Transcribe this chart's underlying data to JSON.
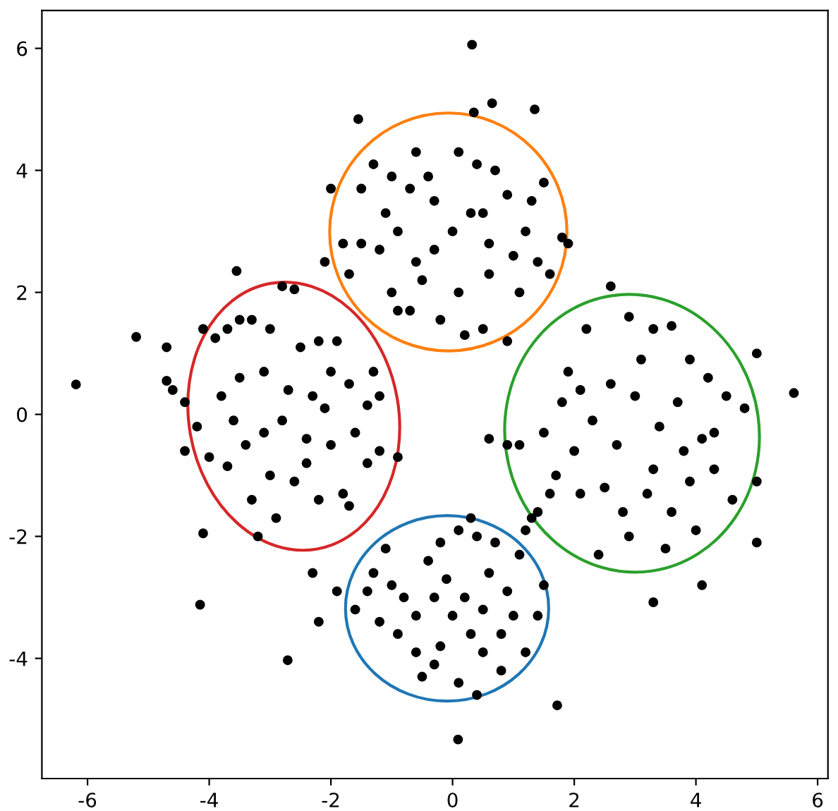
{
  "chart_data": {
    "type": "scatter",
    "xlim": [
      -6.75,
      6.17
    ],
    "ylim": [
      -5.97,
      6.62
    ],
    "xticks": [
      -6,
      -4,
      -2,
      0,
      2,
      4,
      6
    ],
    "yticks": [
      -4,
      -2,
      0,
      2,
      4,
      6
    ],
    "grid": false,
    "series": [
      {
        "color": "#000000",
        "marker": "circle",
        "x": [
          0.32,
          -6.19,
          -5.2,
          5.61,
          0.09,
          1.72,
          -4.15,
          -2.71,
          0.35,
          0.65,
          1.35,
          -1.55,
          -3.55,
          5.0,
          3.3,
          4.1,
          5.0,
          -4.7,
          -4.7,
          -4.6,
          -4.4,
          -4.1,
          -3.9,
          -3.7,
          -3.5,
          -3.3,
          -3.0,
          -2.6,
          -2.8,
          -2.2,
          -2.5,
          -1.9,
          -1.3,
          -1.2,
          -1.4,
          -1.7,
          -2.0,
          -2.3,
          -2.7,
          -3.1,
          -3.5,
          -3.8,
          -4.2,
          -4.4,
          -4.0,
          -3.7,
          -3.4,
          -3.1,
          -2.8,
          -2.4,
          -2.0,
          -1.6,
          -1.4,
          -1.8,
          -2.2,
          -2.6,
          -3.0,
          -3.3,
          -2.9,
          -3.2,
          -1.7,
          -4.1,
          -2.4,
          -3.6,
          -2.1,
          -1.2,
          -0.9,
          -1.5,
          -1.3,
          -1.0,
          -0.7,
          -0.4,
          0.1,
          0.4,
          0.7,
          0.9,
          1.3,
          1.5,
          1.8,
          1.6,
          1.1,
          1.0,
          0.6,
          0.3,
          0.0,
          -0.3,
          -0.6,
          -0.9,
          -1.2,
          -1.5,
          -1.8,
          -2.1,
          -1.7,
          -1.0,
          -0.7,
          -0.2,
          0.2,
          0.5,
          0.9,
          -0.3,
          0.5,
          -1.1,
          1.2,
          0.1,
          -0.5,
          1.9,
          -2.0,
          -0.6,
          0.6,
          -0.9,
          1.4,
          1.5,
          1.8,
          1.9,
          2.2,
          2.6,
          2.9,
          3.3,
          3.6,
          3.9,
          4.2,
          4.5,
          4.8,
          4.3,
          3.8,
          3.4,
          3.0,
          2.6,
          2.3,
          2.0,
          1.7,
          1.1,
          1.4,
          2.1,
          2.5,
          2.8,
          3.2,
          3.6,
          3.9,
          4.3,
          4.6,
          3.5,
          2.9,
          2.4,
          4.0,
          1.2,
          2.1,
          3.1,
          3.7,
          2.7,
          4.1,
          3.3,
          1.6,
          0.9,
          0.6,
          5.0,
          1.3,
          -1.3,
          -1.0,
          -0.8,
          -0.6,
          -0.9,
          -1.2,
          -0.6,
          -0.3,
          0.1,
          0.4,
          0.8,
          1.2,
          1.4,
          1.5,
          1.1,
          0.7,
          0.4,
          0.1,
          -0.2,
          -0.4,
          -0.1,
          0.2,
          0.5,
          0.8,
          0.3,
          0.0,
          -0.3,
          0.6,
          0.9,
          -0.2,
          1.0,
          -1.4,
          -1.1,
          -1.9,
          -2.3,
          -2.2,
          -1.6,
          0.3,
          -0.5,
          0.5
        ],
        "values": [
          6.06,
          0.49,
          1.27,
          0.35,
          -5.33,
          -4.77,
          -3.12,
          -4.03,
          4.95,
          5.1,
          5.0,
          4.84,
          2.35,
          -2.1,
          -3.08,
          -2.8,
          1.0,
          1.1,
          0.55,
          0.4,
          0.2,
          1.4,
          1.25,
          1.4,
          1.55,
          1.55,
          1.4,
          2.05,
          2.1,
          1.2,
          1.1,
          1.2,
          0.7,
          0.3,
          0.15,
          0.5,
          0.7,
          0.3,
          0.4,
          0.7,
          0.6,
          0.3,
          -0.2,
          -0.6,
          -0.7,
          -0.85,
          -0.5,
          -0.3,
          -0.1,
          -0.4,
          -0.5,
          -0.3,
          -0.8,
          -1.3,
          -1.4,
          -1.1,
          -1.0,
          -1.4,
          -1.7,
          -2.0,
          -1.5,
          -1.95,
          -0.8,
          -0.1,
          0.1,
          -0.6,
          -0.7,
          3.7,
          4.1,
          3.9,
          3.7,
          3.9,
          4.3,
          4.1,
          4.0,
          3.6,
          3.5,
          3.8,
          2.9,
          2.3,
          2.0,
          2.6,
          2.8,
          3.3,
          3.0,
          2.7,
          2.5,
          3.0,
          2.7,
          2.8,
          2.8,
          2.5,
          2.3,
          2.0,
          1.7,
          1.55,
          1.3,
          1.4,
          1.2,
          3.5,
          3.3,
          3.3,
          3.0,
          2.0,
          2.2,
          2.8,
          3.7,
          4.3,
          2.3,
          1.7,
          2.5,
          -0.3,
          0.2,
          0.7,
          1.4,
          2.1,
          1.6,
          1.4,
          1.45,
          0.9,
          0.6,
          0.3,
          0.1,
          -0.3,
          -0.6,
          -0.2,
          0.3,
          0.5,
          -0.1,
          -0.6,
          -1.0,
          -0.5,
          -1.6,
          -1.3,
          -1.2,
          -1.6,
          -1.3,
          -1.6,
          -1.1,
          -0.9,
          -1.4,
          -2.2,
          -2.0,
          -2.3,
          -1.9,
          -1.9,
          0.4,
          0.9,
          0.2,
          -0.5,
          -0.4,
          -0.9,
          -1.3,
          -0.5,
          -0.4,
          -1.1,
          -1.7,
          -2.6,
          -2.8,
          -3.0,
          -3.3,
          -3.6,
          -3.4,
          -3.9,
          -4.1,
          -4.4,
          -4.6,
          -4.2,
          -3.9,
          -3.3,
          -2.8,
          -2.3,
          -2.1,
          -2.0,
          -1.9,
          -2.1,
          -2.4,
          -2.7,
          -3.0,
          -3.2,
          -3.6,
          -3.6,
          -3.3,
          -3.0,
          -2.6,
          -2.9,
          -3.8,
          -3.3,
          -2.9,
          -2.2,
          -2.9,
          -2.6,
          -3.4,
          -3.2,
          -1.7,
          -4.3,
          -3.9
        ]
      }
    ]
  }
}
